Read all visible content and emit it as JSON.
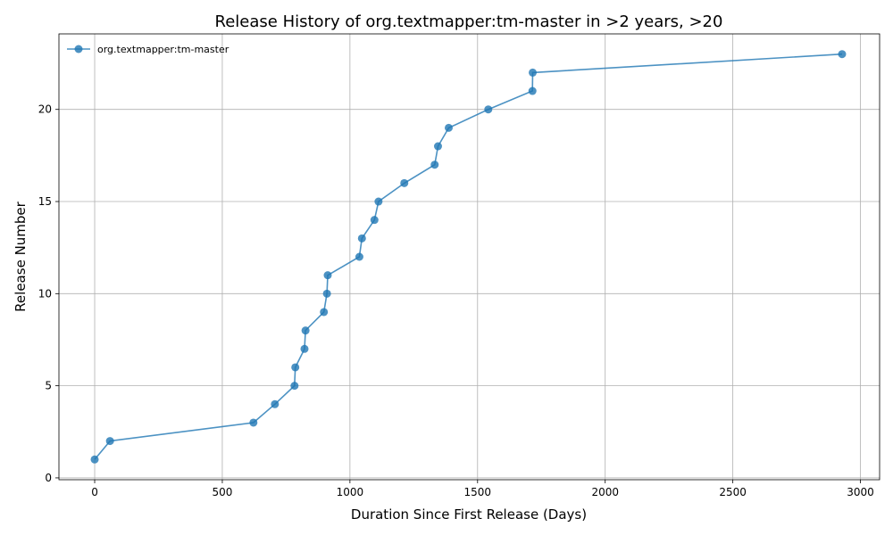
{
  "chart_data": {
    "type": "line",
    "title": "Release History of org.textmapper:tm-master in >2 years, >20",
    "xlabel": "Duration Since First Release (Days)",
    "ylabel": "Release Number",
    "xlim": [
      -140,
      3075
    ],
    "ylim": [
      -0.1,
      24.1
    ],
    "x_ticks": [
      0,
      500,
      1000,
      1500,
      2000,
      2500,
      3000
    ],
    "y_ticks": [
      0,
      5,
      10,
      15,
      20
    ],
    "grid": true,
    "legend_position": "top-left",
    "series": [
      {
        "name": "org.textmapper:tm-master",
        "color": "#1f77b4",
        "marker": "circle",
        "x": [
          0,
          60,
          622,
          706,
          783,
          786,
          822,
          826,
          898,
          910,
          913,
          1037,
          1047,
          1096,
          1112,
          1213,
          1332,
          1345,
          1387,
          1542,
          1715,
          1716,
          2928
        ],
        "y": [
          1,
          2,
          3,
          4,
          5,
          6,
          7,
          8,
          9,
          10,
          11,
          12,
          13,
          14,
          15,
          16,
          17,
          18,
          19,
          20,
          21,
          22,
          23
        ]
      }
    ]
  }
}
